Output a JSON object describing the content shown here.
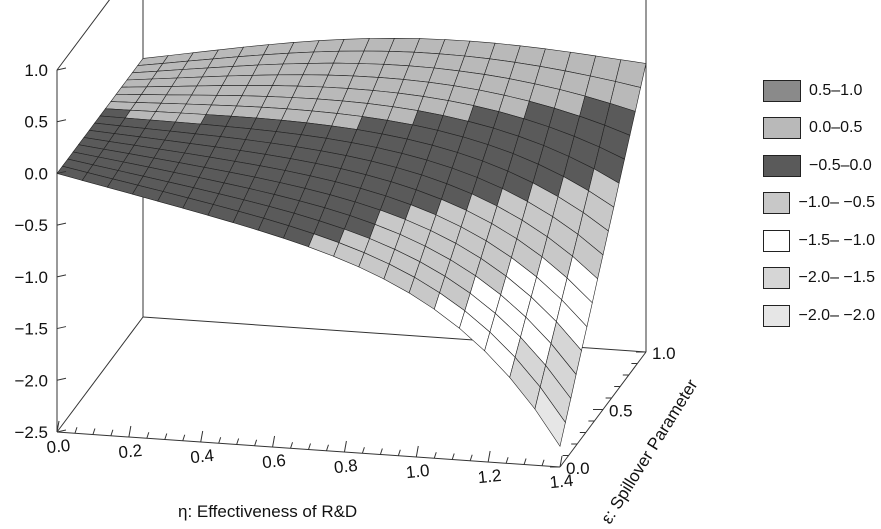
{
  "chart_data": {
    "type": "surface3d",
    "title": "",
    "xlabel": "η: Effectiveness of R&D",
    "ylabel": "ε: Spillover Parameter",
    "zlabel": "",
    "xlim": [
      0.0,
      1.4
    ],
    "ylim": [
      0.0,
      1.0
    ],
    "zlim": [
      -2.5,
      1.0
    ],
    "x_ticks": [
      "0.0",
      "0.2",
      "0.4",
      "0.6",
      "0.8",
      "1.0",
      "1.2",
      "1.4"
    ],
    "y_ticks": [
      "0.0",
      "0.5",
      "1.0"
    ],
    "z_ticks": [
      "1.0",
      "0.5",
      "0.0",
      "−0.5",
      "−1.0",
      "−1.5",
      "−2.0",
      "−2.5"
    ],
    "legend_position": "right",
    "legend": [
      {
        "label": "0.5–1.0",
        "color": "#8a8a8a"
      },
      {
        "label": "0.0–0.5",
        "color": "#b9b9b9"
      },
      {
        "label": "−0.5–0.0",
        "color": "#5a5a5a"
      },
      {
        "label": "−1.0– −0.5",
        "color": "#c8c8c8"
      },
      {
        "label": "−1.5– −1.0",
        "color": "#ffffff"
      },
      {
        "label": "−2.0– −1.5",
        "color": "#d6d6d6"
      },
      {
        "label": "−2.0– −2.0",
        "color": "#e6e6e6"
      }
    ],
    "surface_samples": [
      {
        "x": 0.0,
        "y": 0.0,
        "z": 0.0
      },
      {
        "x": 0.0,
        "y": 1.0,
        "z": 0.0
      },
      {
        "x": 0.4,
        "y": 0.0,
        "z": -0.7
      },
      {
        "x": 0.4,
        "y": 1.0,
        "z": 0.6
      },
      {
        "x": 0.8,
        "y": 0.0,
        "z": -1.1
      },
      {
        "x": 0.8,
        "y": 1.0,
        "z": 0.4
      },
      {
        "x": 1.2,
        "y": 0.0,
        "z": -1.6
      },
      {
        "x": 1.2,
        "y": 1.0,
        "z": 0.9
      },
      {
        "x": 1.4,
        "y": 0.0,
        "z": -2.3
      },
      {
        "x": 1.4,
        "y": 1.0,
        "z": 1.0
      }
    ]
  }
}
